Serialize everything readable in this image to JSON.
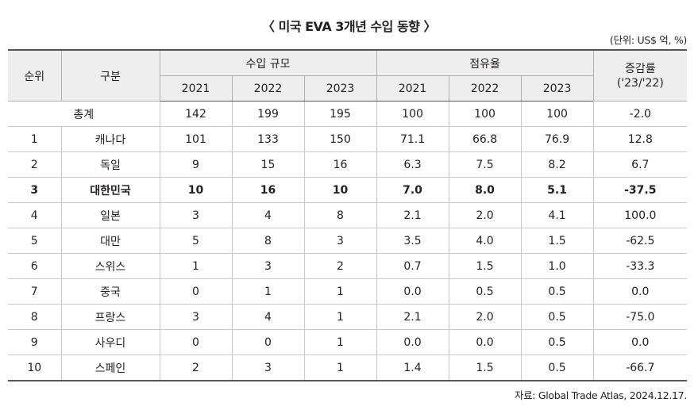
{
  "title": "〈 미국 EVA 3개년 수입 동향 〉",
  "unit": "(단위: US$ 억, %)",
  "headers": {
    "rank": "순위",
    "category": "구분",
    "import_scale": "수입 규모",
    "share": "점유율",
    "change": "증감률",
    "change_period": "('23/'22)",
    "years": [
      "2021",
      "2022",
      "2023"
    ]
  },
  "rows": [
    {
      "rank": "",
      "name": "총계",
      "imp": [
        "142",
        "199",
        "195"
      ],
      "share": [
        "100",
        "100",
        "100"
      ],
      "change": "-2.0",
      "bold": false
    },
    {
      "rank": "1",
      "name": "캐나다",
      "imp": [
        "101",
        "133",
        "150"
      ],
      "share": [
        "71.1",
        "66.8",
        "76.9"
      ],
      "change": "12.8",
      "bold": false
    },
    {
      "rank": "2",
      "name": "독일",
      "imp": [
        "9",
        "15",
        "16"
      ],
      "share": [
        "6.3",
        "7.5",
        "8.2"
      ],
      "change": "6.7",
      "bold": false
    },
    {
      "rank": "3",
      "name": "대한민국",
      "imp": [
        "10",
        "16",
        "10"
      ],
      "share": [
        "7.0",
        "8.0",
        "5.1"
      ],
      "change": "-37.5",
      "bold": true
    },
    {
      "rank": "4",
      "name": "일본",
      "imp": [
        "3",
        "4",
        "8"
      ],
      "share": [
        "2.1",
        "2.0",
        "4.1"
      ],
      "change": "100.0",
      "bold": false
    },
    {
      "rank": "5",
      "name": "대만",
      "imp": [
        "5",
        "8",
        "3"
      ],
      "share": [
        "3.5",
        "4.0",
        "1.5"
      ],
      "change": "-62.5",
      "bold": false
    },
    {
      "rank": "6",
      "name": "스위스",
      "imp": [
        "1",
        "3",
        "2"
      ],
      "share": [
        "0.7",
        "1.5",
        "1.0"
      ],
      "change": "-33.3",
      "bold": false
    },
    {
      "rank": "7",
      "name": "중국",
      "imp": [
        "0",
        "1",
        "1"
      ],
      "share": [
        "0.0",
        "0.5",
        "0.5"
      ],
      "change": "0.0",
      "bold": false
    },
    {
      "rank": "8",
      "name": "프랑스",
      "imp": [
        "3",
        "4",
        "1"
      ],
      "share": [
        "2.1",
        "2.0",
        "0.5"
      ],
      "change": "-75.0",
      "bold": false
    },
    {
      "rank": "9",
      "name": "사우디",
      "imp": [
        "0",
        "0",
        "1"
      ],
      "share": [
        "0.0",
        "0.0",
        "0.5"
      ],
      "change": "0.0",
      "bold": false
    },
    {
      "rank": "10",
      "name": "스페인",
      "imp": [
        "2",
        "3",
        "1"
      ],
      "share": [
        "1.4",
        "1.5",
        "0.5"
      ],
      "change": "-66.7",
      "bold": false
    }
  ],
  "source": "자료: Global Trade Atlas, 2024.12.17."
}
